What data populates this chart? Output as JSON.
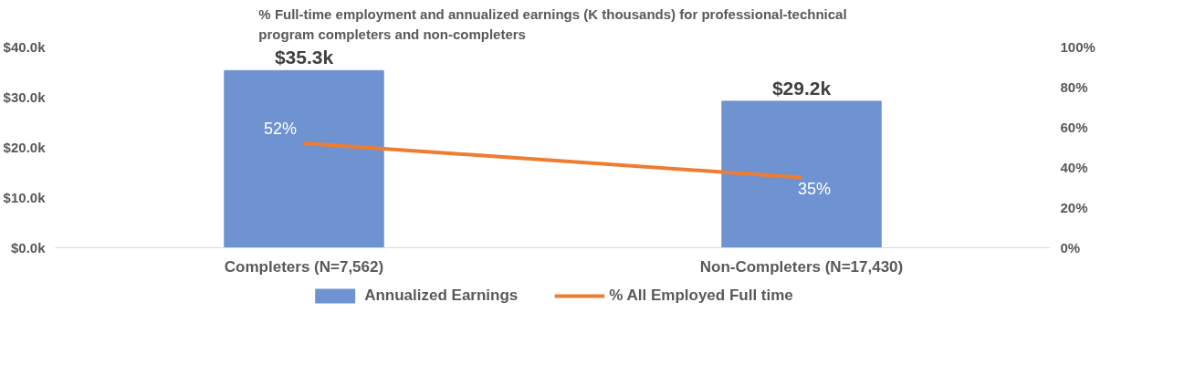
{
  "chart_data": {
    "type": "bar",
    "title": "% Full-time employment and annualized earnings (K thousands) for professional-technical program completers and non-completers",
    "categories": [
      "Completers (N=7,562)",
      "Non-Completers (N=17,430)"
    ],
    "series": [
      {
        "name": "Annualized Earnings",
        "color": "#6f93d1",
        "values": [
          35.3,
          29.2
        ],
        "value_labels": [
          "$35.3k",
          "$29.2k"
        ]
      },
      {
        "name": "% All Employed Full time",
        "type": "line",
        "axis": "y2",
        "color": "#ed7d31",
        "values": [
          52,
          35
        ],
        "value_labels": [
          "52%",
          "35%"
        ]
      }
    ],
    "ylim": [
      0,
      40
    ],
    "yticks": [
      {
        "value": 0,
        "label": "$0.0k"
      },
      {
        "value": 10,
        "label": "$10.0k"
      },
      {
        "value": 20,
        "label": "$20.0k"
      },
      {
        "value": 30,
        "label": "$30.0k"
      },
      {
        "value": 40,
        "label": "$40.0k"
      }
    ],
    "y2lim": [
      0,
      100
    ],
    "y2ticks": [
      {
        "value": 0,
        "label": "0%"
      },
      {
        "value": 20,
        "label": "20%"
      },
      {
        "value": 40,
        "label": "40%"
      },
      {
        "value": 60,
        "label": "60%"
      },
      {
        "value": 80,
        "label": "80%"
      },
      {
        "value": 100,
        "label": "100%"
      }
    ],
    "grid": false,
    "legend": "bottom",
    "marker": "none"
  }
}
